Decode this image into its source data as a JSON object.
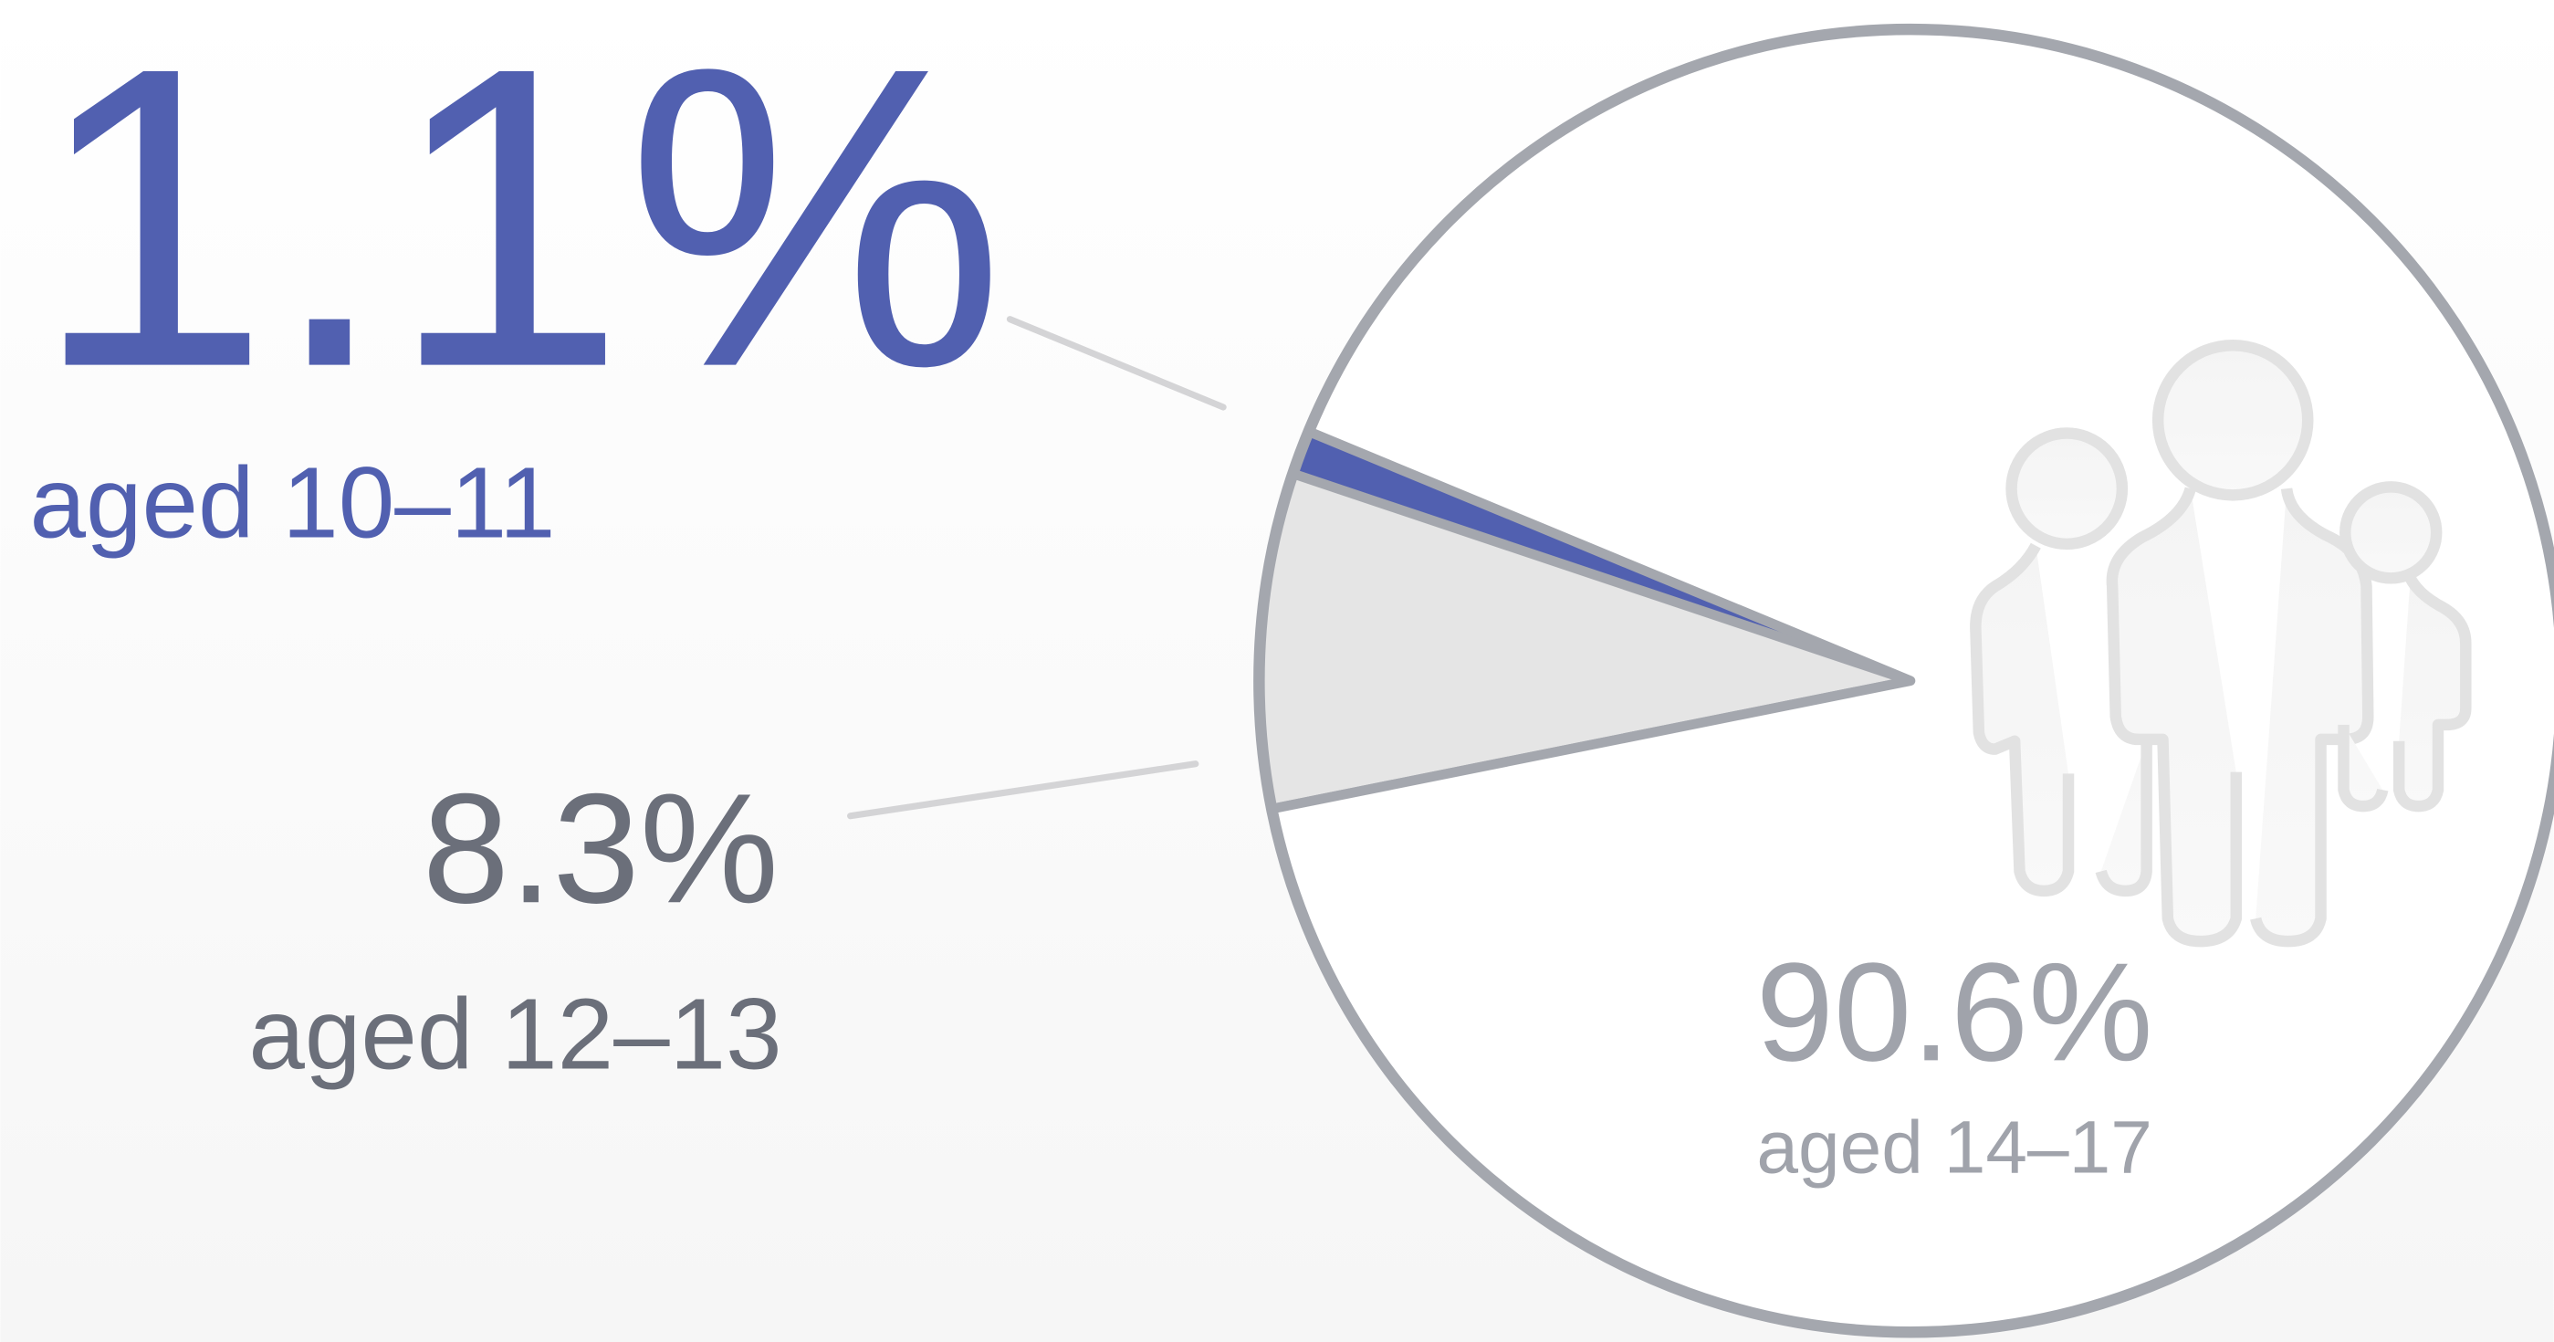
{
  "chart_data": {
    "type": "pie",
    "categories": [
      "aged 10–11",
      "aged 12–13",
      "aged 14–17"
    ],
    "values": [
      1.1,
      8.3,
      90.6
    ],
    "value_labels": [
      "1.1%",
      "8.3%",
      "90.6%"
    ],
    "colors": [
      "#5160b0",
      "#e5e5e5",
      "#ffffff"
    ]
  }
}
